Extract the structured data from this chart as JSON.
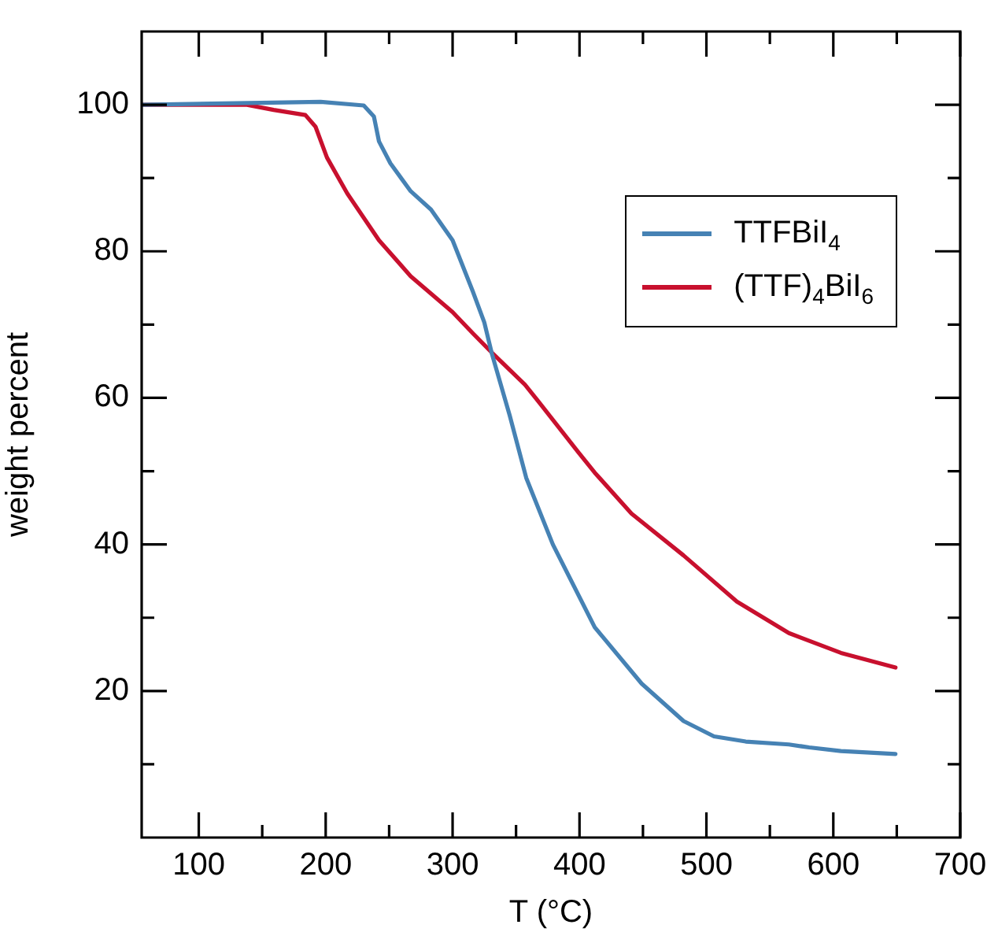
{
  "chart_data": {
    "type": "line",
    "xlabel": "T (°C)",
    "ylabel": "weight percent",
    "xlim": [
      55,
      700
    ],
    "ylim": [
      0,
      110
    ],
    "xticks": [
      100,
      {
        "value": 150,
        "label": null
      },
      200,
      {
        "value": 250,
        "label": null
      },
      300,
      {
        "value": 350,
        "label": null
      },
      400,
      {
        "value": 450,
        "label": null
      },
      500,
      {
        "value": 550,
        "label": null
      },
      600,
      {
        "value": 650,
        "label": null
      },
      700
    ],
    "yticks": [
      {
        "value": 10,
        "label": null
      },
      20,
      {
        "value": 30,
        "label": null
      },
      40,
      {
        "value": 50,
        "label": null
      },
      60,
      {
        "value": 70,
        "label": null
      },
      80,
      {
        "value": 90,
        "label": null
      },
      100
    ],
    "grid": false,
    "legend": "top right",
    "marker": "none",
    "line_style": "solid",
    "series": [
      {
        "name": "TTFBiI$_{4}$",
        "color": "#4682b4",
        "x": [
          55,
          196,
          230,
          238,
          242,
          251,
          267,
          283,
          300,
          316,
          325,
          331,
          345,
          358,
          379,
          412,
          449,
          482,
          506,
          531,
          565,
          581,
          606,
          649
        ],
        "values": [
          100,
          100.4,
          99.9,
          98.4,
          95,
          92,
          88.2,
          85.7,
          81.5,
          74.5,
          70.3,
          66,
          57.6,
          49.1,
          40,
          28.7,
          21,
          15.9,
          13.8,
          13.1,
          12.7,
          12.3,
          11.8,
          11.4
        ]
      },
      {
        "name": "(TTF)$_{4}$BiI$_{6}$",
        "color": "#c8102e",
        "x": [
          55,
          138,
          159,
          184,
          192,
          201,
          217,
          242,
          267,
          300,
          316,
          332,
          357,
          370,
          399,
          412,
          441,
          482,
          524,
          565,
          606,
          649
        ],
        "values": [
          100,
          100,
          99.3,
          98.6,
          97,
          92.8,
          87.9,
          81.5,
          76.6,
          71.7,
          68.8,
          66,
          61.8,
          59,
          52.6,
          49.8,
          44.2,
          38.5,
          32.2,
          27.9,
          25.2,
          23.2
        ]
      }
    ]
  }
}
